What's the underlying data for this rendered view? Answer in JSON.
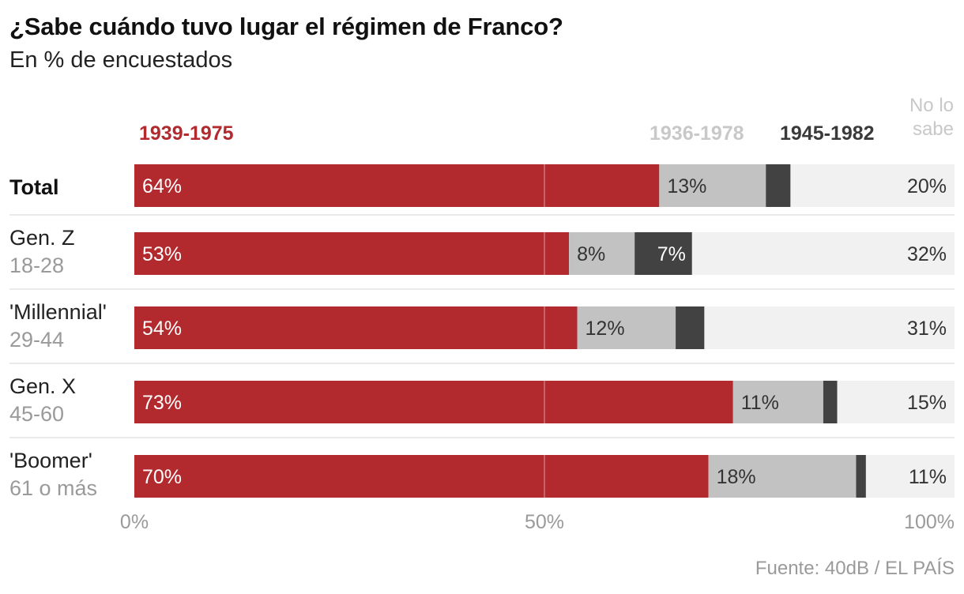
{
  "chart_data": {
    "type": "bar",
    "stacked": true,
    "orientation": "horizontal",
    "title": "¿Sabe cuándo tuvo lugar el régimen de Franco?",
    "subtitle": "En % de encuestados",
    "source": "Fuente: 40dB / EL PAÍS",
    "xlim": [
      0,
      100
    ],
    "ticks": [
      {
        "value": 0,
        "label": "0%"
      },
      {
        "value": 50,
        "label": "50%"
      },
      {
        "value": 100,
        "label": "100%"
      }
    ],
    "categories": [
      {
        "name": "Total",
        "sub": "",
        "bold": true
      },
      {
        "name": "Gen. Z",
        "sub": "18-28",
        "bold": false
      },
      {
        "name": "'Millennial'",
        "sub": "29-44",
        "bold": false
      },
      {
        "name": "Gen. X",
        "sub": "45-60",
        "bold": false
      },
      {
        "name": "'Boomer'",
        "sub": "61 o más",
        "bold": false
      }
    ],
    "series": [
      {
        "name": "1939-1975",
        "color": "#b22a2e",
        "label_color": "#ffffff",
        "label_align": "start",
        "values": [
          64,
          53,
          54,
          73,
          70
        ],
        "labels": [
          "64%",
          "53%",
          "54%",
          "73%",
          "70%"
        ]
      },
      {
        "name": "1936-1978",
        "color": "#c2c2c2",
        "label_color": "#333333",
        "label_align": "start",
        "values": [
          13,
          8,
          12,
          11,
          18
        ],
        "labels": [
          "13%",
          "8%",
          "12%",
          "11%",
          "18%"
        ]
      },
      {
        "name": "1945-1982",
        "color": "#424242",
        "label_color": "#ffffff",
        "label_align": "end",
        "values": [
          3,
          7,
          3.5,
          1.7,
          1.2
        ],
        "labels": [
          "",
          "7%",
          "",
          "",
          ""
        ]
      },
      {
        "name": "No lo sabe",
        "name_lines": [
          "No lo",
          "sabe"
        ],
        "color": "#f1f1f1",
        "label_color": "#333333",
        "label_align": "end-of-chart",
        "values": [
          20,
          32,
          31,
          15,
          11
        ],
        "labels": [
          "20%",
          "32%",
          "31%",
          "15%",
          "11%"
        ]
      }
    ],
    "legend_colors": [
      "#b22a2e",
      "#c8c8c8",
      "#3a3a3a",
      "#c8c8c8"
    ]
  }
}
